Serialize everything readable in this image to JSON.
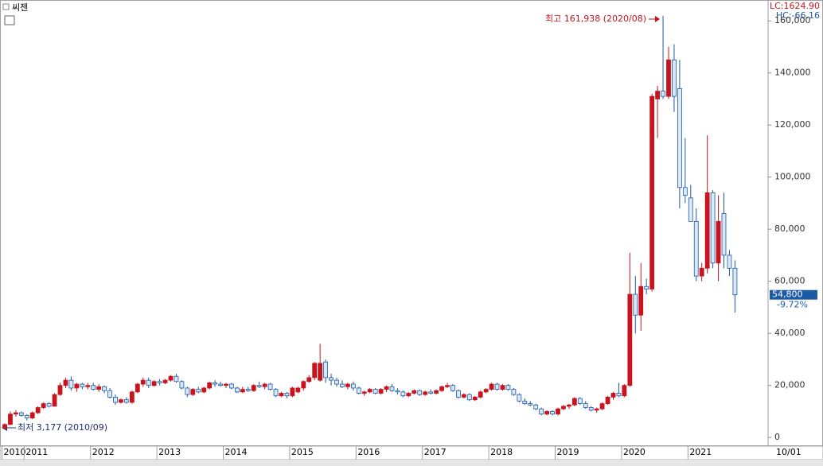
{
  "chart_data": {
    "type": "candlestick",
    "title": "씨젠",
    "categories": [
      "2010",
      null,
      null,
      null,
      "2011",
      null,
      null,
      null,
      null,
      null,
      null,
      null,
      null,
      null,
      null,
      null,
      "2012",
      null,
      null,
      null,
      null,
      null,
      null,
      null,
      null,
      null,
      null,
      null,
      "2013",
      null,
      null,
      null,
      null,
      null,
      null,
      null,
      null,
      null,
      null,
      null,
      "2014",
      null,
      null,
      null,
      null,
      null,
      null,
      null,
      null,
      null,
      null,
      null,
      "2015",
      null,
      null,
      null,
      null,
      null,
      null,
      null,
      null,
      null,
      null,
      null,
      "2016",
      null,
      null,
      null,
      null,
      null,
      null,
      null,
      null,
      null,
      null,
      null,
      "2017",
      null,
      null,
      null,
      null,
      null,
      null,
      null,
      null,
      null,
      null,
      null,
      "2018",
      null,
      null,
      null,
      null,
      null,
      null,
      null,
      null,
      null,
      null,
      null,
      "2019",
      null,
      null,
      null,
      null,
      null,
      null,
      null,
      null,
      null,
      null,
      null,
      "2020",
      null,
      null,
      null,
      null,
      null,
      null,
      null,
      null,
      null,
      null,
      null,
      "2021",
      null,
      null,
      null,
      null,
      null,
      null,
      null,
      null
    ],
    "ohlc": [
      [
        3500,
        5500,
        3177,
        5000
      ],
      [
        5000,
        10000,
        4800,
        9000
      ],
      [
        9000,
        10500,
        8000,
        9500
      ],
      [
        9500,
        10000,
        8000,
        8500
      ],
      [
        8500,
        9000,
        6500,
        7500
      ],
      [
        7500,
        10000,
        7000,
        9500
      ],
      [
        9500,
        12000,
        9000,
        11500
      ],
      [
        11500,
        13500,
        11000,
        13000
      ],
      [
        13000,
        13500,
        11500,
        12000
      ],
      [
        12000,
        17000,
        12000,
        16500
      ],
      [
        16500,
        21000,
        16000,
        20000
      ],
      [
        20000,
        23000,
        19000,
        22000
      ],
      [
        22000,
        23500,
        18000,
        19000
      ],
      [
        19000,
        21000,
        17500,
        20500
      ],
      [
        20500,
        21000,
        18500,
        19500
      ],
      [
        19500,
        21000,
        18500,
        20000
      ],
      [
        20000,
        21000,
        18000,
        18500
      ],
      [
        18500,
        20500,
        17500,
        19500
      ],
      [
        19500,
        20000,
        17000,
        18000
      ],
      [
        18000,
        19000,
        15000,
        15500
      ],
      [
        15500,
        16500,
        12500,
        13500
      ],
      [
        13500,
        15000,
        13000,
        14500
      ],
      [
        14500,
        15500,
        13000,
        13500
      ],
      [
        13500,
        18000,
        13000,
        17500
      ],
      [
        17500,
        21000,
        17000,
        20500
      ],
      [
        20500,
        23000,
        19500,
        22000
      ],
      [
        22000,
        23000,
        19000,
        20000
      ],
      [
        20000,
        22000,
        19500,
        21500
      ],
      [
        21500,
        22500,
        20000,
        21000
      ],
      [
        21000,
        22500,
        20500,
        22000
      ],
      [
        22000,
        24000,
        21500,
        23500
      ],
      [
        23500,
        24500,
        21000,
        21500
      ],
      [
        21500,
        22000,
        18500,
        19000
      ],
      [
        19000,
        19500,
        15500,
        16500
      ],
      [
        16500,
        19000,
        16000,
        18500
      ],
      [
        18500,
        19500,
        17000,
        17500
      ],
      [
        17500,
        19500,
        17000,
        19000
      ],
      [
        19000,
        21500,
        18500,
        21000
      ],
      [
        21000,
        22000,
        19500,
        20500
      ],
      [
        20500,
        21500,
        19500,
        20000
      ],
      [
        20000,
        21000,
        19000,
        20500
      ],
      [
        20500,
        21000,
        18500,
        19000
      ],
      [
        19000,
        19500,
        17000,
        17500
      ],
      [
        17500,
        19500,
        17000,
        18500
      ],
      [
        18500,
        19500,
        17500,
        18000
      ],
      [
        18000,
        20500,
        17500,
        20000
      ],
      [
        20000,
        21500,
        19000,
        19500
      ],
      [
        19500,
        21000,
        18500,
        20500
      ],
      [
        20500,
        21000,
        18000,
        18500
      ],
      [
        18500,
        19000,
        15500,
        16000
      ],
      [
        16000,
        17500,
        15500,
        17000
      ],
      [
        17000,
        17500,
        15000,
        16000
      ],
      [
        16000,
        19500,
        15500,
        19000
      ],
      [
        17500,
        19500,
        17000,
        19000
      ],
      [
        19000,
        22000,
        18000,
        21500
      ],
      [
        21500,
        24000,
        21000,
        23000
      ],
      [
        23000,
        29000,
        22000,
        28500
      ],
      [
        22000,
        36000,
        21500,
        28500
      ],
      [
        29000,
        30000,
        21000,
        23000
      ],
      [
        23000,
        24500,
        20000,
        22000
      ],
      [
        22000,
        23000,
        19500,
        20500
      ],
      [
        20500,
        22000,
        19000,
        19500
      ],
      [
        19500,
        21000,
        18500,
        20500
      ],
      [
        20500,
        21500,
        18000,
        19000
      ],
      [
        19000,
        19500,
        16500,
        17000
      ],
      [
        17000,
        18000,
        16000,
        17500
      ],
      [
        17500,
        19000,
        17000,
        18500
      ],
      [
        18500,
        19000,
        16500,
        17000
      ],
      [
        17000,
        19000,
        16500,
        18500
      ],
      [
        18500,
        20000,
        17500,
        19500
      ],
      [
        19500,
        20500,
        17500,
        18000
      ],
      [
        18000,
        19000,
        16500,
        17500
      ],
      [
        17500,
        18000,
        15500,
        16000
      ],
      [
        16000,
        17500,
        15500,
        17000
      ],
      [
        17000,
        18500,
        16500,
        18000
      ],
      [
        18000,
        18500,
        16000,
        16500
      ],
      [
        16500,
        18000,
        16000,
        17500
      ],
      [
        17500,
        18500,
        16500,
        17000
      ],
      [
        17000,
        18500,
        16500,
        18000
      ],
      [
        18000,
        20000,
        17500,
        19500
      ],
      [
        19500,
        21000,
        19000,
        20000
      ],
      [
        20000,
        20500,
        17500,
        18000
      ],
      [
        18000,
        18500,
        15000,
        15500
      ],
      [
        15500,
        17000,
        15000,
        16500
      ],
      [
        16500,
        17000,
        14000,
        14500
      ],
      [
        14500,
        16000,
        14000,
        15500
      ],
      [
        15500,
        18000,
        15000,
        17500
      ],
      [
        17500,
        19000,
        17000,
        18500
      ],
      [
        18500,
        21000,
        18000,
        20500
      ],
      [
        20500,
        21000,
        18000,
        18500
      ],
      [
        18500,
        20500,
        18000,
        20000
      ],
      [
        20000,
        20500,
        18000,
        18500
      ],
      [
        18500,
        19000,
        16000,
        16500
      ],
      [
        16500,
        17000,
        13500,
        14000
      ],
      [
        14000,
        15000,
        12500,
        13000
      ],
      [
        13000,
        14000,
        12000,
        12500
      ],
      [
        12500,
        13000,
        10500,
        11000
      ],
      [
        11000,
        11500,
        8500,
        9000
      ],
      [
        9000,
        10500,
        8500,
        10000
      ],
      [
        10000,
        10500,
        8500,
        9000
      ],
      [
        9000,
        11500,
        8500,
        11000
      ],
      [
        11000,
        12500,
        10500,
        12000
      ],
      [
        12000,
        13000,
        11000,
        12500
      ],
      [
        12500,
        15500,
        12000,
        15000
      ],
      [
        15000,
        15500,
        12500,
        13000
      ],
      [
        13000,
        14000,
        11000,
        11500
      ],
      [
        11500,
        12000,
        10000,
        10500
      ],
      [
        10500,
        11500,
        9500,
        11000
      ],
      [
        11000,
        13500,
        10500,
        13000
      ],
      [
        13000,
        16000,
        12500,
        15500
      ],
      [
        15500,
        17500,
        14500,
        17000
      ],
      [
        17000,
        21000,
        15500,
        16000
      ],
      [
        16000,
        20500,
        15500,
        20000
      ],
      [
        20000,
        71000,
        19500,
        55000
      ],
      [
        55000,
        62000,
        40000,
        47000
      ],
      [
        47000,
        67000,
        41000,
        58000
      ],
      [
        58000,
        61000,
        55000,
        57000
      ],
      [
        57000,
        132000,
        56000,
        131000
      ],
      [
        130000,
        135000,
        115000,
        133000
      ],
      [
        133000,
        161938,
        130000,
        131000
      ],
      [
        131000,
        150000,
        130000,
        145000
      ],
      [
        145000,
        151000,
        125000,
        131000
      ],
      [
        134000,
        145000,
        88000,
        96000
      ],
      [
        96000,
        115000,
        90000,
        93000
      ],
      [
        92000,
        97000,
        83000,
        83000
      ],
      [
        83000,
        88000,
        60000,
        62000
      ],
      [
        62000,
        67000,
        60000,
        65000
      ],
      [
        65000,
        116000,
        63000,
        94000
      ],
      [
        94000,
        95000,
        65000,
        67000
      ],
      [
        67000,
        93000,
        60000,
        83000
      ],
      [
        86000,
        94000,
        65000,
        70000
      ],
      [
        70000,
        72000,
        62000,
        65000
      ],
      [
        65000,
        68000,
        48000,
        54800
      ]
    ],
    "up_color": "#c8141e",
    "down_color": "#1c5aa6",
    "ylim": [
      -3000,
      168000
    ],
    "yticks": [
      0,
      {
        "value": 20000,
        "label": "20,000"
      },
      {
        "value": 40000,
        "label": "40,000"
      },
      {
        "value": 60000,
        "label": "60,000"
      },
      {
        "value": 80000,
        "label": "80,000"
      },
      {
        "value": 100000,
        "label": "100,000"
      },
      {
        "value": 120000,
        "label": "120,000"
      },
      {
        "value": 140000,
        "label": "140,000"
      },
      {
        "value": 160000,
        "label": "160,000"
      }
    ],
    "x_end_label": "10/01",
    "last_close_label": "54,800",
    "last_change_label": "-9.72%",
    "high_annotation": "최고 161,938 (2020/08)",
    "low_annotation": "최저 3,177 (2010/09)",
    "lc_label": "LC:1624.90",
    "hc_label": "HC:-66.16"
  }
}
